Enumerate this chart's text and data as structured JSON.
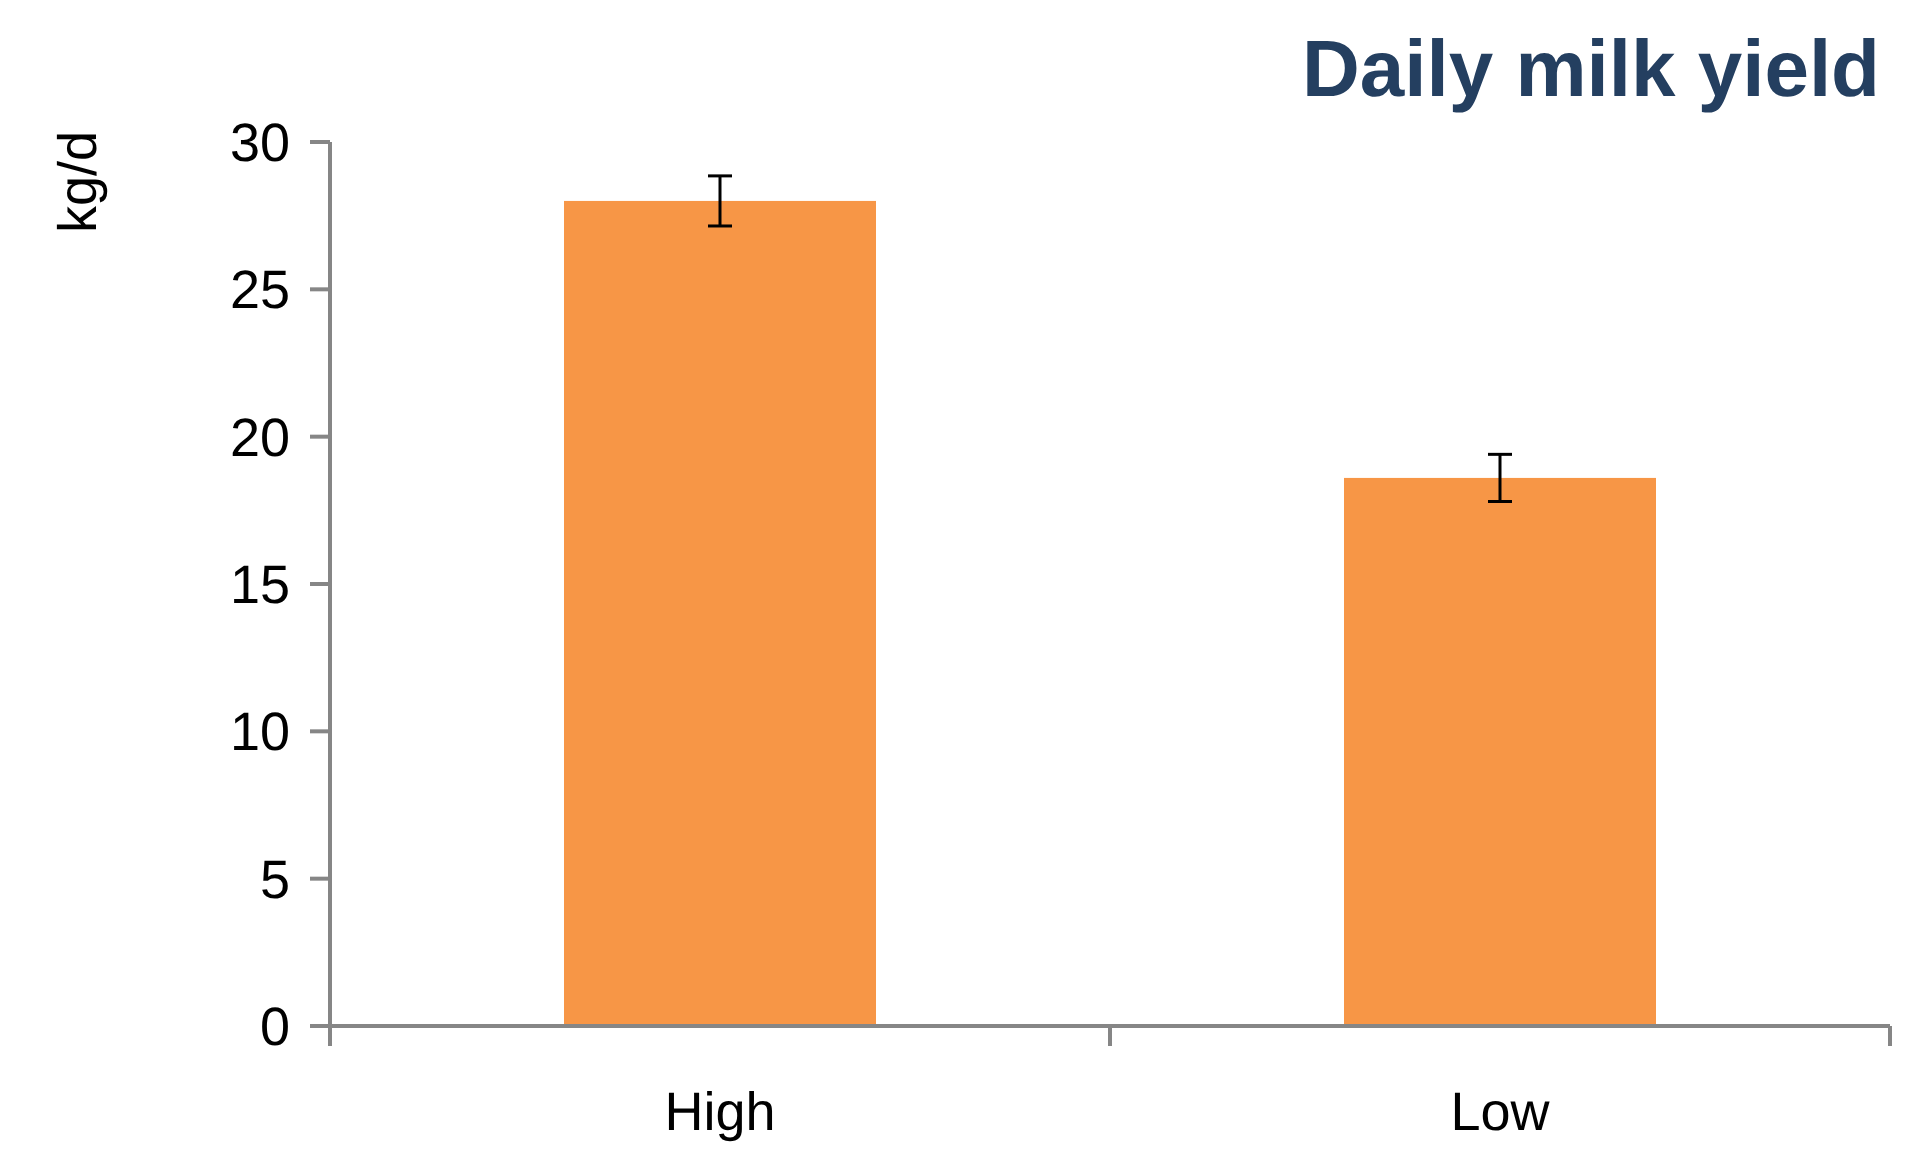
{
  "chart_data": {
    "type": "bar",
    "title": "Daily milk yield",
    "ylabel": "kg/d",
    "categories": [
      "High",
      "Low"
    ],
    "values": [
      28,
      18.6
    ],
    "errors": [
      0.85,
      0.8
    ],
    "color": "#f79646",
    "ylim": [
      0,
      30
    ],
    "yticks": [
      0,
      5,
      10,
      15,
      20,
      25,
      30
    ],
    "grid": false
  }
}
